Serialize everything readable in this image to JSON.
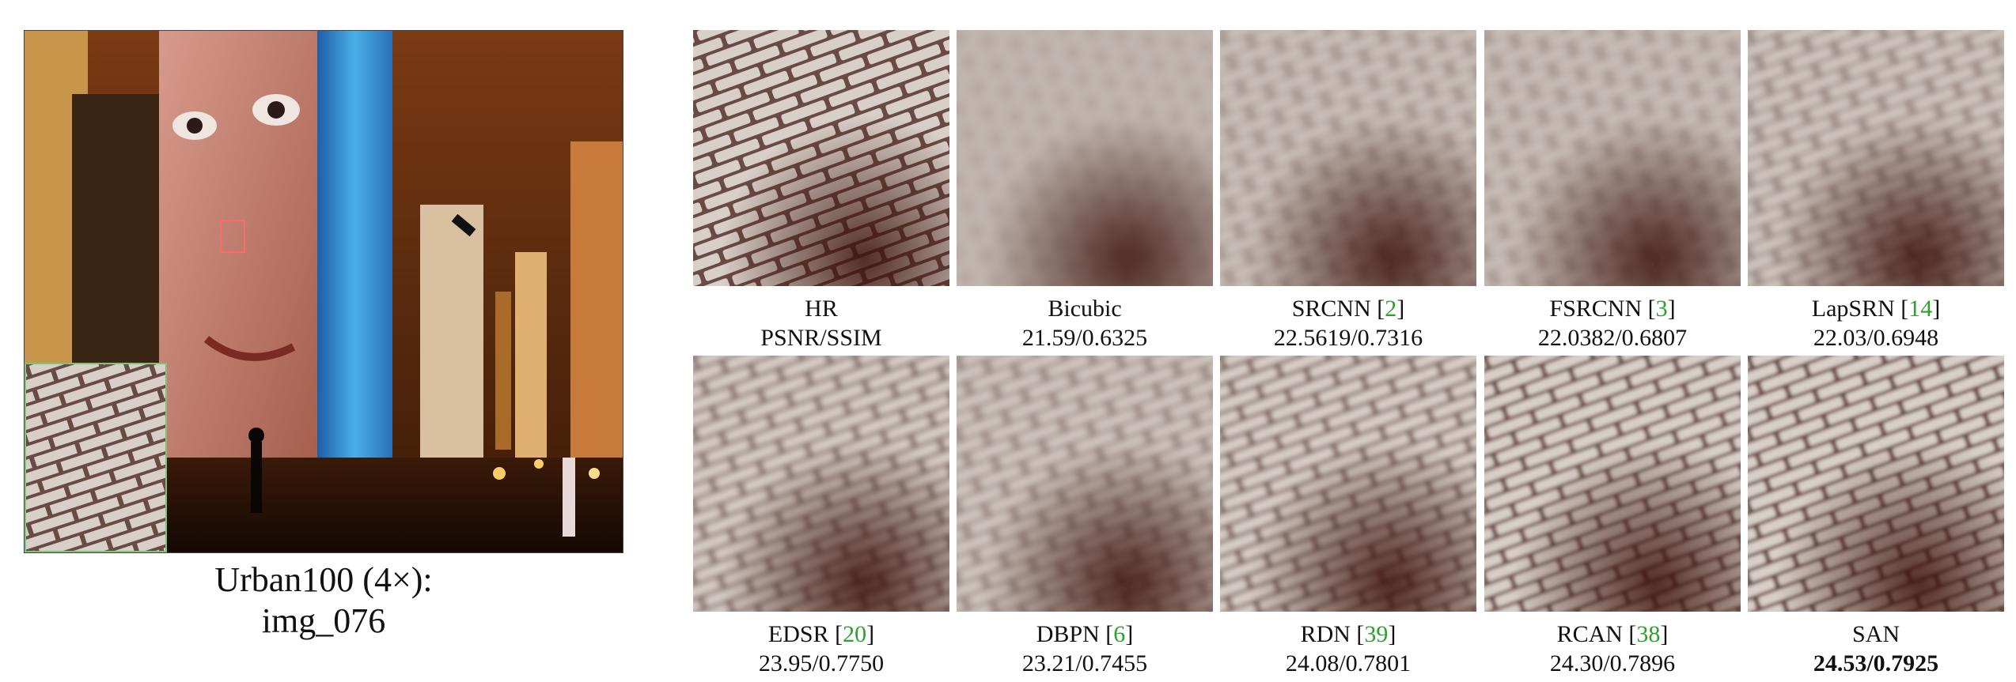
{
  "scene": {
    "caption_line1": "Urban100 (4×):",
    "caption_line2": "img_076"
  },
  "methods": [
    {
      "name": "HR",
      "ref": "",
      "score": "PSNR/SSIM",
      "blur": 0,
      "best": false
    },
    {
      "name": "Bicubic",
      "ref": "",
      "score": "21.59/0.6325",
      "blur": 9,
      "best": false
    },
    {
      "name": "SRCNN ",
      "ref": "2",
      "score": "22.5619/0.7316",
      "blur": 6,
      "best": false
    },
    {
      "name": "FSRCNN ",
      "ref": "3",
      "score": "22.0382/0.6807",
      "blur": 6.5,
      "best": false
    },
    {
      "name": "LapSRN ",
      "ref": "14",
      "score": "22.03/0.6948",
      "blur": 5,
      "best": false
    },
    {
      "name": "EDSR ",
      "ref": "20",
      "score": "23.95/0.7750",
      "blur": 4,
      "best": false
    },
    {
      "name": "DBPN ",
      "ref": "6",
      "score": "23.21/0.7455",
      "blur": 5,
      "best": false
    },
    {
      "name": "RDN ",
      "ref": "39",
      "score": "24.08/0.7801",
      "blur": 3.5,
      "best": false
    },
    {
      "name": "RCAN ",
      "ref": "38",
      "score": "24.30/0.7896",
      "blur": 2.5,
      "best": false
    },
    {
      "name": "SAN",
      "ref": "",
      "score": "24.53/0.7925",
      "blur": 2,
      "best": true
    }
  ],
  "colors": {
    "ref_green": "#2ca02c",
    "inset_border": "#7cc47a",
    "brick": "#d8cfc8",
    "mortar": "#6a4a44"
  }
}
